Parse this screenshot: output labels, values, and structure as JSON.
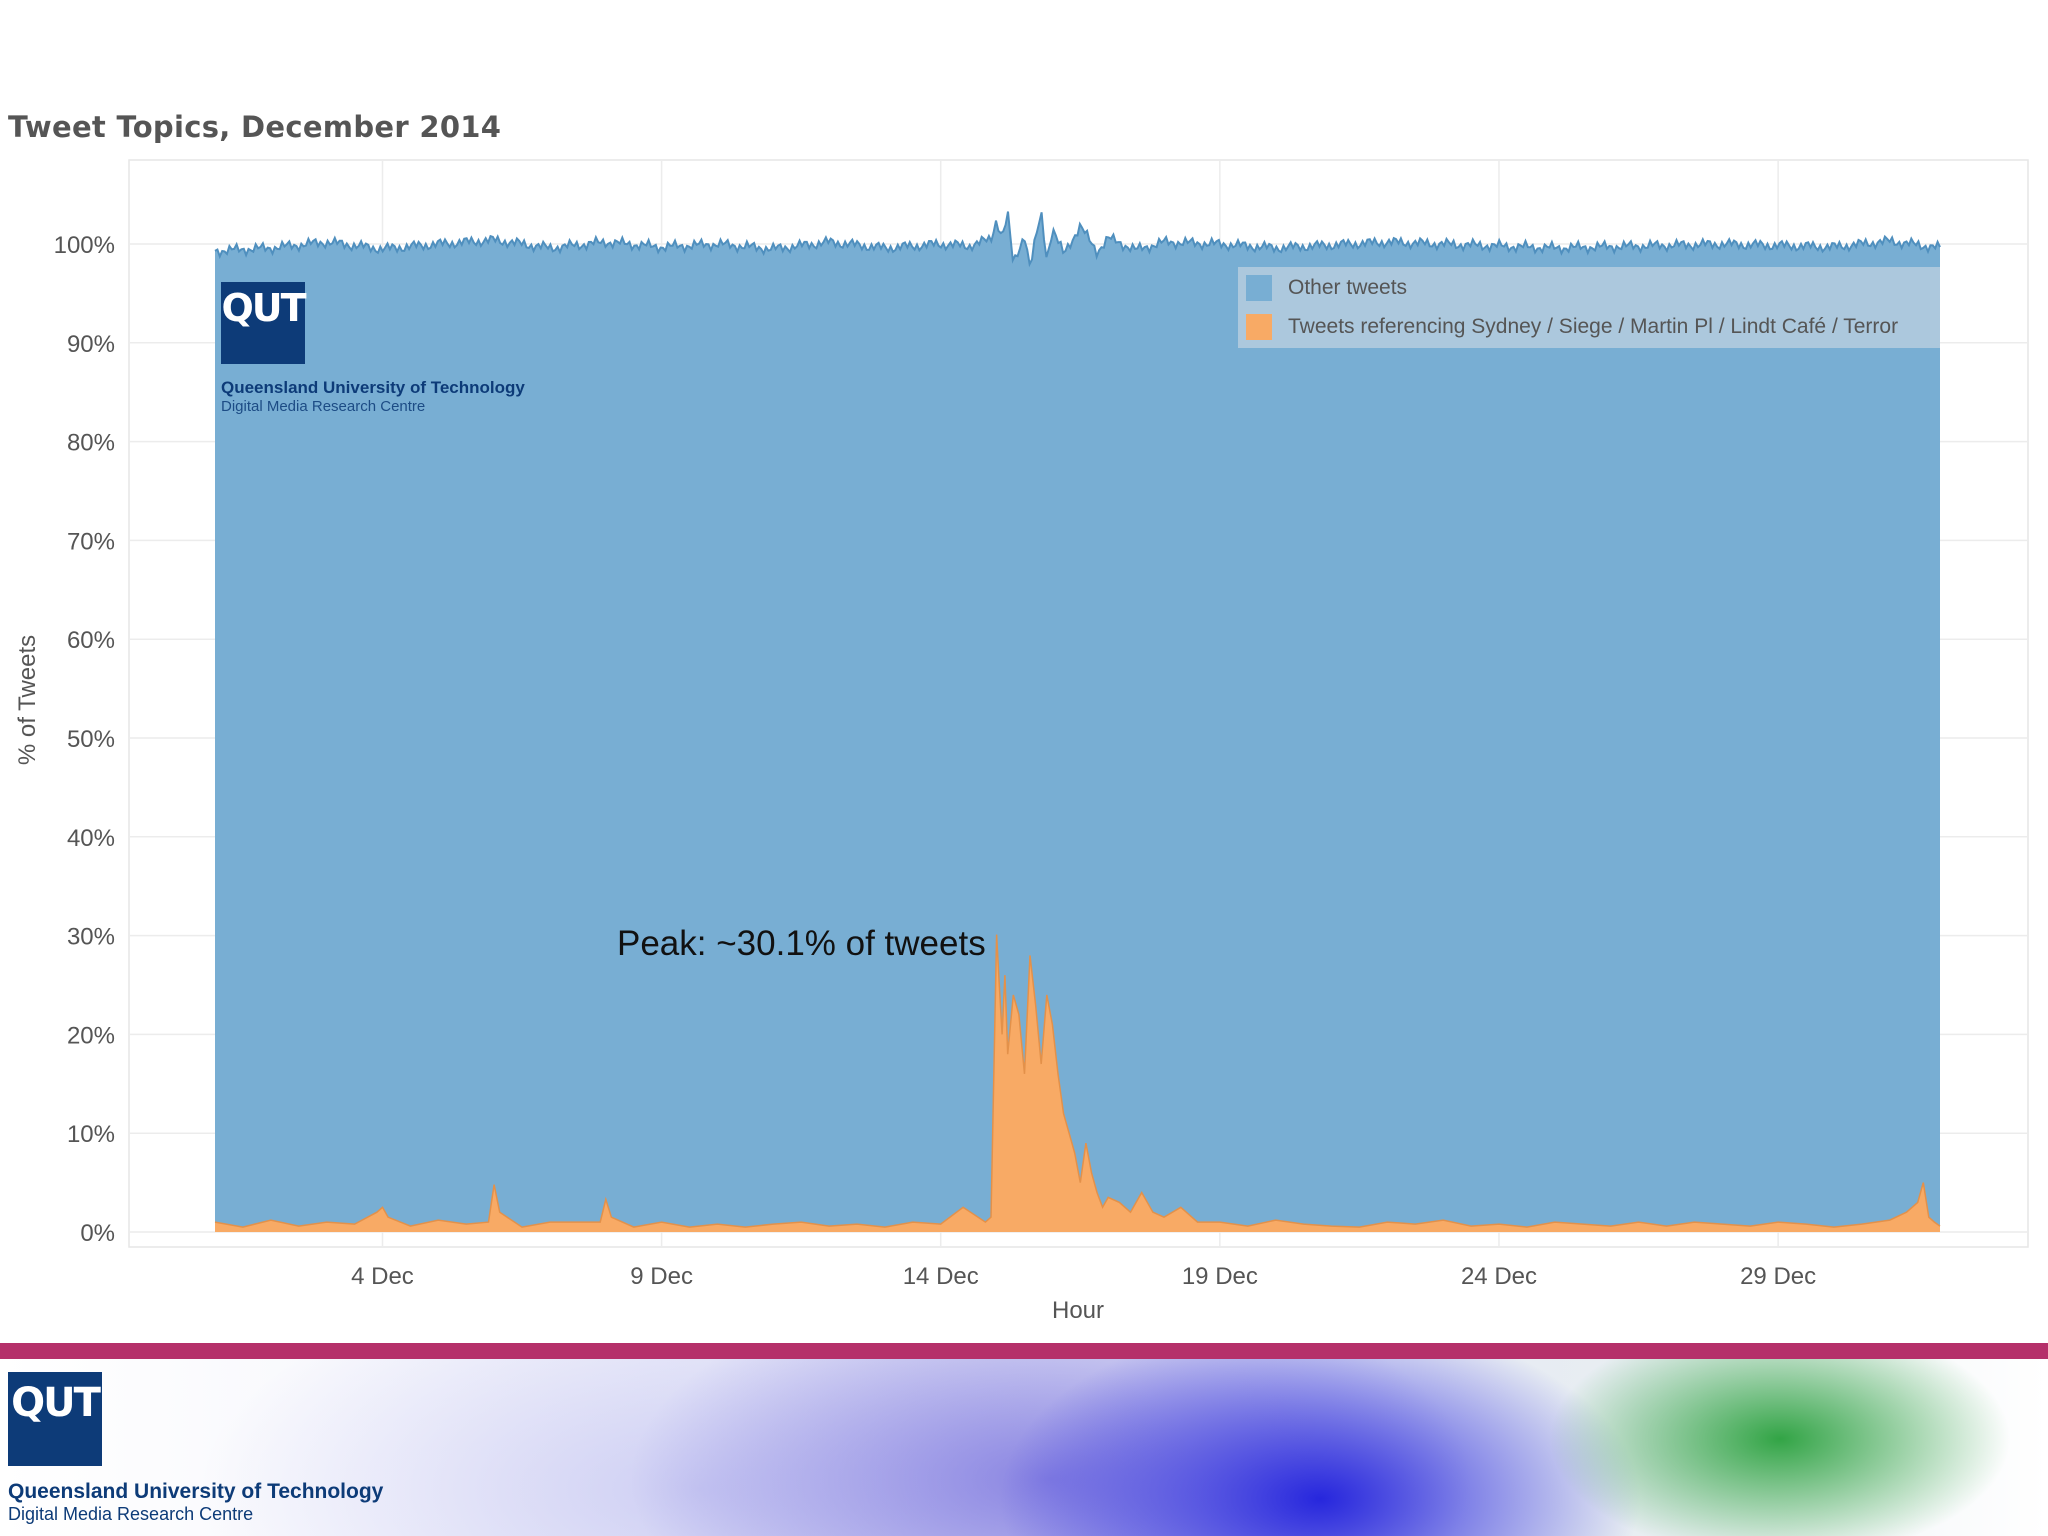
{
  "logo": {
    "mark": "QUT",
    "name": "Queensland University of Technology",
    "subtitle": "Digital Media Research Centre"
  },
  "annotation": "Peak: ~30.1% of tweets",
  "colors": {
    "other": "#78aed3",
    "other_line": "#4f8fbe",
    "sydney": "#f8aa65",
    "sydney_line": "#e3914a",
    "footer_bar": "#b5306a",
    "qut_blue": "#0d3b78"
  },
  "chart_data": {
    "type": "area",
    "stacked": true,
    "normalized": true,
    "title": "Tweet Topics, December 2014",
    "xlabel": "Hour",
    "ylabel": "% of Tweets",
    "x_range_days": [
      1,
      31.9
    ],
    "ylim": [
      0,
      100
    ],
    "grid": true,
    "legend_position": "top-right",
    "x_ticks": [
      {
        "day": 4,
        "label": "4 Dec"
      },
      {
        "day": 9,
        "label": "9 Dec"
      },
      {
        "day": 14,
        "label": "14 Dec"
      },
      {
        "day": 19,
        "label": "19 Dec"
      },
      {
        "day": 24,
        "label": "24 Dec"
      },
      {
        "day": 29,
        "label": "29 Dec"
      }
    ],
    "y_ticks": [
      {
        "value": 0,
        "label": "0%"
      },
      {
        "value": 10,
        "label": "10%"
      },
      {
        "value": 20,
        "label": "20%"
      },
      {
        "value": 30,
        "label": "30%"
      },
      {
        "value": 40,
        "label": "40%"
      },
      {
        "value": 50,
        "label": "50%"
      },
      {
        "value": 60,
        "label": "60%"
      },
      {
        "value": 70,
        "label": "70%"
      },
      {
        "value": 80,
        "label": "80%"
      },
      {
        "value": 90,
        "label": "90%"
      },
      {
        "value": 100,
        "label": "100%"
      }
    ],
    "series": [
      {
        "name": "Tweets referencing Sydney / Siege / Martin Pl / Lindt Café / Terror",
        "x_day": [
          1.0,
          1.5,
          2.0,
          2.5,
          3.0,
          3.5,
          3.9,
          4.0,
          4.1,
          4.5,
          5.0,
          5.5,
          5.9,
          6.0,
          6.1,
          6.5,
          7.0,
          7.9,
          8.0,
          8.1,
          8.5,
          9.0,
          9.5,
          10.0,
          10.5,
          11.0,
          11.5,
          12.0,
          12.5,
          13.0,
          13.5,
          14.0,
          14.4,
          14.8,
          14.9,
          15.0,
          15.05,
          15.1,
          15.15,
          15.2,
          15.3,
          15.4,
          15.5,
          15.6,
          15.7,
          15.8,
          15.9,
          16.0,
          16.1,
          16.2,
          16.3,
          16.4,
          16.5,
          16.6,
          16.7,
          16.8,
          16.9,
          17.0,
          17.2,
          17.4,
          17.6,
          17.8,
          18.0,
          18.3,
          18.6,
          19.0,
          19.5,
          20.0,
          20.5,
          21.0,
          21.5,
          22.0,
          22.5,
          23.0,
          23.5,
          24.0,
          24.5,
          25.0,
          25.5,
          26.0,
          26.5,
          27.0,
          27.5,
          28.0,
          28.5,
          29.0,
          29.5,
          30.0,
          30.5,
          31.0,
          31.3,
          31.5,
          31.6,
          31.7,
          31.8,
          31.9
        ],
        "values": [
          1.0,
          0.5,
          1.2,
          0.6,
          1.0,
          0.8,
          2.0,
          2.5,
          1.5,
          0.6,
          1.2,
          0.8,
          1.0,
          4.8,
          2.0,
          0.5,
          1.0,
          1.0,
          3.3,
          1.5,
          0.5,
          1.0,
          0.5,
          0.8,
          0.5,
          0.8,
          1.0,
          0.6,
          0.8,
          0.5,
          1.0,
          0.8,
          2.5,
          1.0,
          1.5,
          30.1,
          25.0,
          20.0,
          26.0,
          18.0,
          24.0,
          22.0,
          16.0,
          28.0,
          23.0,
          17.0,
          24.0,
          21.0,
          16.0,
          12.0,
          10.0,
          8.0,
          5.0,
          9.0,
          6.0,
          4.0,
          2.5,
          3.5,
          3.0,
          2.0,
          4.0,
          2.0,
          1.5,
          2.5,
          1.0,
          1.0,
          0.6,
          1.2,
          0.8,
          0.6,
          0.5,
          1.0,
          0.8,
          1.2,
          0.6,
          0.8,
          0.5,
          1.0,
          0.8,
          0.6,
          1.0,
          0.6,
          1.0,
          0.8,
          0.6,
          1.0,
          0.8,
          0.5,
          0.8,
          1.2,
          2.0,
          3.0,
          5.0,
          1.5,
          1.0,
          0.6
        ]
      },
      {
        "name": "Other tweets",
        "description_of_values": "",
        "x_day": [
          1.0,
          31.9
        ],
        "values": [
          99.0,
          99.4
        ]
      }
    ],
    "total_top_envelope": {
      "x_day": [
        1.0,
        2.0,
        3.0,
        4.0,
        5.0,
        6.0,
        7.0,
        8.0,
        9.0,
        10.0,
        11.0,
        12.0,
        13.0,
        14.0,
        14.5,
        14.9,
        15.0,
        15.1,
        15.2,
        15.3,
        15.5,
        15.6,
        15.7,
        15.8,
        15.9,
        16.0,
        16.2,
        16.5,
        16.8,
        17.0,
        17.5,
        18.0,
        19.0,
        20.0,
        22.0,
        25.0,
        28.0,
        30.0,
        31.0,
        31.9
      ],
      "values": [
        99.3,
        99.6,
        100.2,
        99.5,
        100.0,
        100.4,
        99.6,
        100.2,
        99.7,
        100.0,
        99.5,
        100.2,
        99.6,
        100.0,
        99.8,
        100.5,
        102.5,
        100.6,
        103.0,
        98.0,
        101.0,
        97.5,
        100.5,
        103.2,
        98.5,
        101.5,
        99.0,
        101.8,
        99.2,
        100.6,
        99.4,
        100.2,
        100.0,
        99.6,
        100.2,
        99.6,
        100.0,
        99.7,
        100.3,
        99.6
      ]
    }
  }
}
